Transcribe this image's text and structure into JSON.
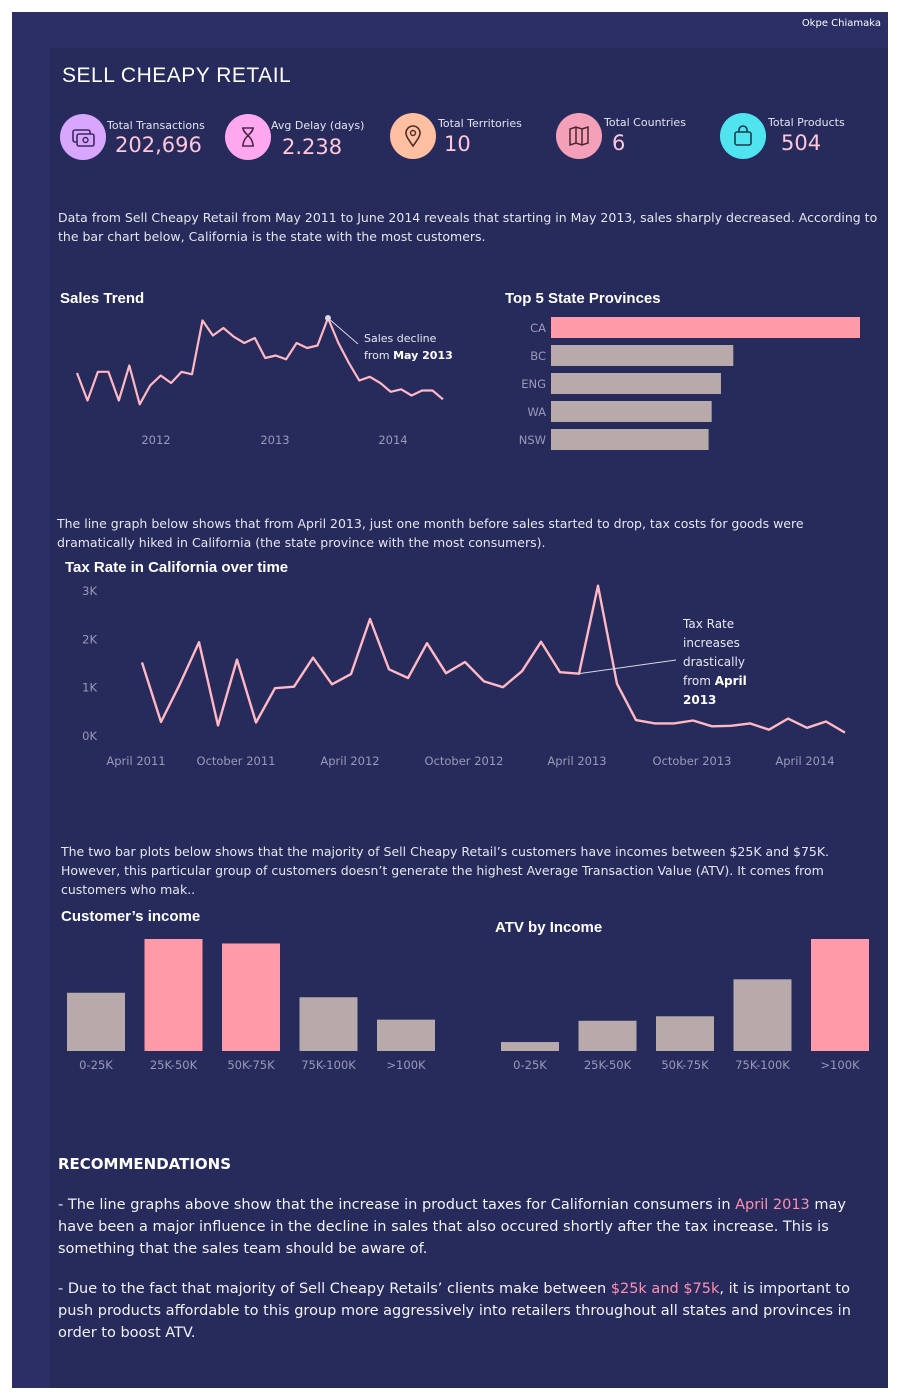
{
  "header": {
    "author": "Okpe Chiamaka",
    "title": "SELL CHEAPY RETAIL"
  },
  "kpis": [
    {
      "label": "Total Transactions",
      "value": "202,696",
      "icon": "transactions-icon",
      "color": "#d9a6ff"
    },
    {
      "label": "Avg Delay (days)",
      "value": "2.238",
      "icon": "hourglass-icon",
      "color": "#ffa8f0"
    },
    {
      "label": "Total Territories",
      "value": "10",
      "icon": "location-pin-icon",
      "color": "#ffbfa0"
    },
    {
      "label": "Total Countries",
      "value": "6",
      "icon": "map-icon",
      "color": "#f4a0b8"
    },
    {
      "label": "Total Products",
      "value": "504",
      "icon": "shopping-bag-icon",
      "color": "#4fe4f0"
    }
  ],
  "intro_text": "Data from Sell Cheapy Retail from May 2011 to June 2014 reveals that starting in May 2013, sales sharply decreased. According to the bar chart below, California is the state with the most customers.",
  "tax_text": "The line graph below shows that from April 2013, just one month before sales started to drop, tax costs for goods were dramatically hiked in California (the state province with the most consumers).",
  "income_text": "The two bar plots below shows that the majority of Sell Cheapy Retail’s customers have incomes between $25K and $75K. However, this particular group of customers doesn’t generate the highest Average Transaction Value (ATV). It comes from customers who mak..",
  "recommendations": {
    "title": "RECOMMENDATIONS",
    "r1_pre": "- The line graphs above show that the increase in product taxes for Californian consumers in ",
    "r1_hl": "April 2013",
    "r1_post": " may have been a major influence in the decline in sales that also occured shortly after the tax increase. This is something that the sales team should be aware of.",
    "r2_pre": "- Due to the fact that majority of Sell Cheapy Retails’ clients make between ",
    "r2_hl": "$25k and $75k",
    "r2_post": ", it is important to push products affordable to this group more aggressively into retailers throughout all states and provinces in order to boost ATV."
  },
  "colors": {
    "highlight": "#ff9aa8",
    "bar": "#b8aaaa",
    "line": "#ffb8c4",
    "axis_text": "#9a9ab8"
  },
  "chart_data": [
    {
      "id": "sales_trend",
      "type": "line",
      "title": "Sales Trend",
      "x_ticks": [
        "2012",
        "2013",
        "2014"
      ],
      "values": [
        36,
        14,
        37,
        37,
        14,
        42,
        11,
        26,
        34,
        28,
        37,
        35,
        78,
        66,
        72,
        65,
        60,
        64,
        48,
        50,
        47,
        60,
        56,
        58,
        80,
        60,
        44,
        30,
        33,
        28,
        21,
        23,
        18,
        22,
        22,
        15
      ],
      "highlight_index": 24,
      "annotation": [
        "Sales decline",
        "from ",
        "May 2013"
      ]
    },
    {
      "id": "top_states",
      "type": "bar",
      "orientation": "horizontal",
      "title": "Top 5 State Provinces",
      "categories": [
        "CA",
        "BC",
        "ENG",
        "WA",
        "NSW"
      ],
      "values": [
        100,
        59,
        55,
        52,
        51
      ],
      "highlight": [
        "CA"
      ]
    },
    {
      "id": "tax_rate",
      "type": "line",
      "title": "Tax Rate in California over time",
      "y_ticks": [
        "3K",
        "2K",
        "1K",
        "0K"
      ],
      "ylim": [
        0,
        3000
      ],
      "x_ticks": [
        "April 2011",
        "October 2011",
        "April 2012",
        "October 2012",
        "April 2013",
        "October 2013",
        "April 2014"
      ],
      "values": [
        1520,
        290,
        1080,
        1940,
        220,
        1580,
        280,
        990,
        1020,
        1620,
        1070,
        1280,
        2420,
        1380,
        1200,
        1920,
        1300,
        1530,
        1130,
        1010,
        1340,
        1950,
        1320,
        1290,
        3110,
        1080,
        330,
        260,
        260,
        320,
        200,
        210,
        260,
        130,
        360,
        170,
        300,
        70
      ],
      "highlight_index": 23,
      "annotation": [
        "Tax Rate",
        "increases",
        "drastically",
        "from ",
        "April",
        "2013"
      ]
    },
    {
      "id": "customer_income",
      "type": "bar",
      "title": "Customer’s income",
      "categories": [
        "0-25K",
        "25K-50K",
        "50K-75K",
        "75K-100K",
        ">100K"
      ],
      "values": [
        52,
        100,
        96,
        48,
        28
      ],
      "highlight": [
        "25K-50K",
        "50K-75K"
      ]
    },
    {
      "id": "atv_income",
      "type": "bar",
      "title": "ATV by Income",
      "categories": [
        "0-25K",
        "25K-50K",
        "50K-75K",
        "75K-100K",
        ">100K"
      ],
      "values": [
        8,
        27,
        31,
        64,
        100
      ],
      "highlight": [
        ">100K"
      ]
    }
  ]
}
